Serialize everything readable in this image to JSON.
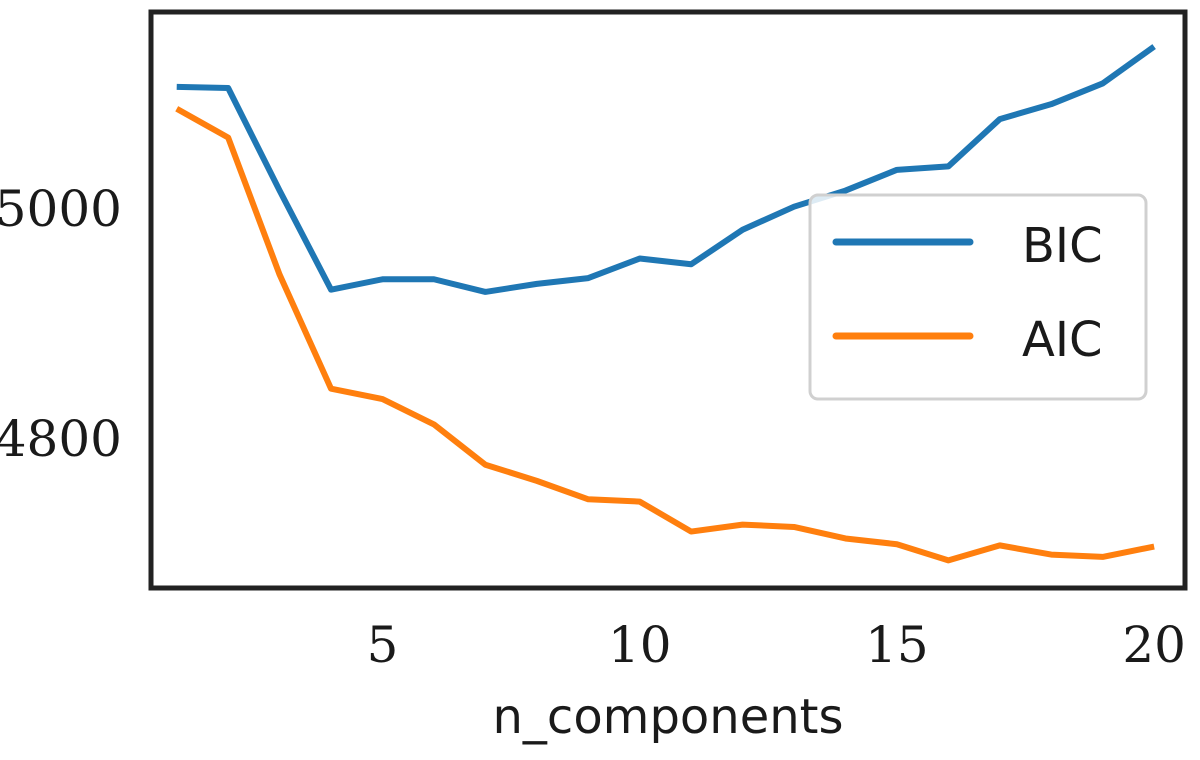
{
  "chart_data": {
    "type": "line",
    "title": "",
    "xlabel": "n_components",
    "ylabel": "",
    "xlim": [
      0.5,
      20.6
    ],
    "ylim": [
      4670,
      5170
    ],
    "xticks": [
      5,
      10,
      15,
      20
    ],
    "yticks": [
      4800,
      5000
    ],
    "grid": false,
    "legend_position": "right",
    "x": [
      1,
      2,
      3,
      4,
      5,
      6,
      7,
      8,
      9,
      10,
      11,
      12,
      13,
      14,
      15,
      16,
      17,
      18,
      19,
      20
    ],
    "series": [
      {
        "name": "BIC",
        "color": "#1f77b4",
        "values": [
          5105,
          5104,
          5015,
          4929,
          4938,
          4938,
          4927,
          4934,
          4939,
          4956,
          4951,
          4981,
          5001,
          5015,
          5033,
          5036,
          5077,
          5090,
          5108,
          5140
        ]
      },
      {
        "name": "AIC",
        "color": "#ff7f0e",
        "values": [
          5086,
          5061,
          4942,
          4843,
          4834,
          4812,
          4777,
          4763,
          4747,
          4745,
          4719,
          4725,
          4723,
          4713,
          4708,
          4694,
          4707,
          4699,
          4697,
          4706
        ]
      }
    ]
  }
}
